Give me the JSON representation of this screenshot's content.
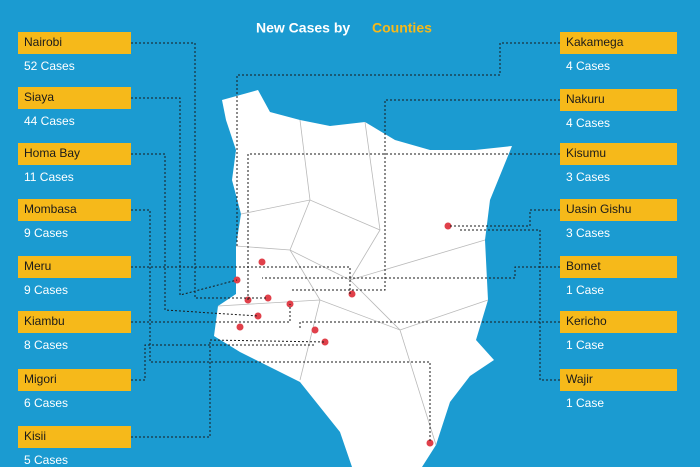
{
  "title": {
    "text": "New Cases by",
    "highlight": "Counties"
  },
  "left": [
    {
      "county": "Nairobi",
      "cases": "52 Cases"
    },
    {
      "county": "Siaya",
      "cases": "44 Cases"
    },
    {
      "county": "Homa Bay",
      "cases": "11 Cases"
    },
    {
      "county": "Mombasa",
      "cases": "9 Cases"
    },
    {
      "county": "Meru",
      "cases": "9 Cases"
    },
    {
      "county": "Kiambu",
      "cases": "8 Cases"
    },
    {
      "county": "Migori",
      "cases": "6 Cases"
    },
    {
      "county": "Kisii",
      "cases": "5 Cases"
    }
  ],
  "right": [
    {
      "county": "Kakamega",
      "cases": "4 Cases"
    },
    {
      "county": "Nakuru",
      "cases": "4 Cases"
    },
    {
      "county": "Kisumu",
      "cases": "3 Cases"
    },
    {
      "county": "Uasin Gishu",
      "cases": "3 Cases"
    },
    {
      "county": "Bomet",
      "cases": "1 Case"
    },
    {
      "county": "Kericho",
      "cases": "1 Case"
    },
    {
      "county": "Wajir",
      "cases": "1 Case"
    }
  ]
}
